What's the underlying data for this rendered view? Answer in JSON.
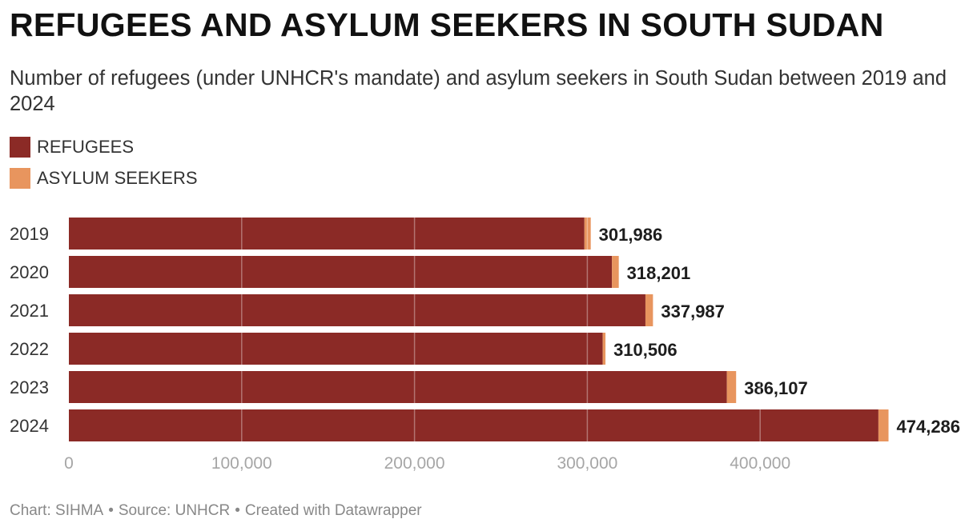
{
  "title": "REFUGEES AND ASYLUM SEEKERS IN SOUTH SUDAN",
  "subtitle": "Number of refugees (under UNHCR's mandate) and asylum seekers in South Sudan between 2019 and 2024",
  "legend": [
    {
      "label": "REFUGEES",
      "color": "#8b2a26"
    },
    {
      "label": "ASYLUM SEEKERS",
      "color": "#e8955e"
    }
  ],
  "footer": {
    "chart": "Chart: SIHMA",
    "source": "Source: UNHCR",
    "created": "Created with Datawrapper",
    "separator": "•"
  },
  "chart_data": {
    "type": "bar",
    "orientation": "horizontal",
    "stacked": true,
    "categories": [
      "2019",
      "2020",
      "2021",
      "2022",
      "2023",
      "2024"
    ],
    "series": [
      {
        "name": "REFUGEES",
        "color": "#8b2a26",
        "values": [
          298311,
          314245,
          333623,
          308894,
          380755,
          468442
        ]
      },
      {
        "name": "ASYLUM SEEKERS",
        "color": "#e8955e",
        "values": [
          3675,
          3956,
          4364,
          1612,
          5352,
          5844
        ]
      }
    ],
    "totals": [
      301986,
      318201,
      337987,
      310506,
      386107,
      474286
    ],
    "total_labels": [
      "301,986",
      "318,201",
      "337,987",
      "310,506",
      "386,107",
      "474,286"
    ],
    "xlim": [
      0,
      500000
    ],
    "xticks": [
      0,
      100000,
      200000,
      300000,
      400000
    ],
    "xtick_labels": [
      "0",
      "100,000",
      "200,000",
      "300,000",
      "400,000"
    ],
    "grid": true,
    "legend_position": "top-left"
  }
}
